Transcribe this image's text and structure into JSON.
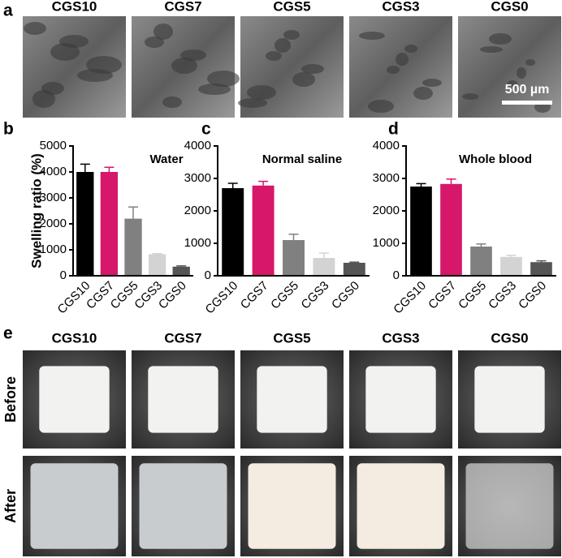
{
  "panel_labels": [
    "a",
    "b",
    "c",
    "d",
    "e"
  ],
  "sem_labels": [
    "CGS10",
    "CGS7",
    "CGS5",
    "CGS3",
    "CGS0"
  ],
  "scale_bar": "500 µm",
  "photo_labels": [
    "CGS10",
    "CGS7",
    "CGS5",
    "CGS3",
    "CGS0"
  ],
  "row_labels": [
    "Before",
    "After"
  ],
  "chart_data": [
    {
      "type": "bar",
      "y_label": "Swelling ratio (%)",
      "annotation": "Water",
      "categories": [
        "CGS10",
        "CGS7",
        "CGS5",
        "CGS3",
        "CGS0"
      ],
      "values": [
        4000,
        4000,
        2200,
        830,
        350
      ],
      "errors": [
        300,
        180,
        450,
        20,
        30
      ],
      "colors": [
        "#000000",
        "#d6176a",
        "#808080",
        "#d3d3d3",
        "#555555"
      ],
      "ylim": [
        0,
        5000
      ],
      "yticks": [
        0,
        1000,
        2000,
        3000,
        4000,
        5000
      ]
    },
    {
      "type": "bar",
      "annotation": "Normal saline",
      "categories": [
        "CGS10",
        "CGS7",
        "CGS5",
        "CGS3",
        "CGS0"
      ],
      "values": [
        2700,
        2780,
        1100,
        550,
        400
      ],
      "errors": [
        150,
        130,
        180,
        150,
        20
      ],
      "colors": [
        "#000000",
        "#d6176a",
        "#808080",
        "#d3d3d3",
        "#555555"
      ],
      "ylim": [
        0,
        4000
      ],
      "yticks": [
        0,
        1000,
        2000,
        3000,
        4000
      ]
    },
    {
      "type": "bar",
      "annotation": "Whole blood",
      "categories": [
        "CGS10",
        "CGS7",
        "CGS5",
        "CGS3",
        "CGS0"
      ],
      "values": [
        2750,
        2830,
        900,
        580,
        420
      ],
      "errors": [
        90,
        150,
        80,
        50,
        40
      ],
      "colors": [
        "#000000",
        "#d6176a",
        "#808080",
        "#d3d3d3",
        "#555555"
      ],
      "ylim": [
        0,
        4000
      ],
      "yticks": [
        0,
        1000,
        2000,
        3000,
        4000
      ]
    }
  ]
}
